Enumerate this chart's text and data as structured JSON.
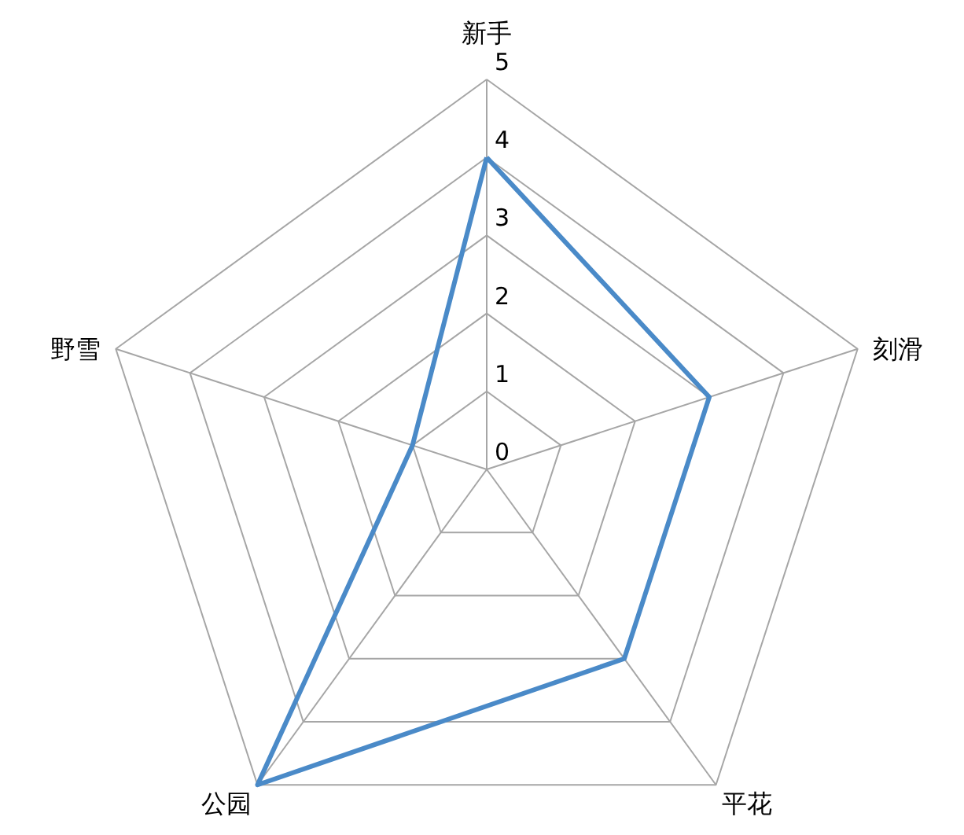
{
  "chart_data": {
    "type": "radar",
    "categories": [
      "新手",
      "刻滑",
      "平花",
      "公园",
      "野雪"
    ],
    "series": [
      {
        "color": "#4a8ac8",
        "values": [
          4,
          3,
          3,
          5,
          1
        ]
      }
    ],
    "ylim": [
      0,
      5
    ],
    "yticks": [
      0,
      1,
      2,
      3,
      4,
      5
    ],
    "grid": true
  }
}
